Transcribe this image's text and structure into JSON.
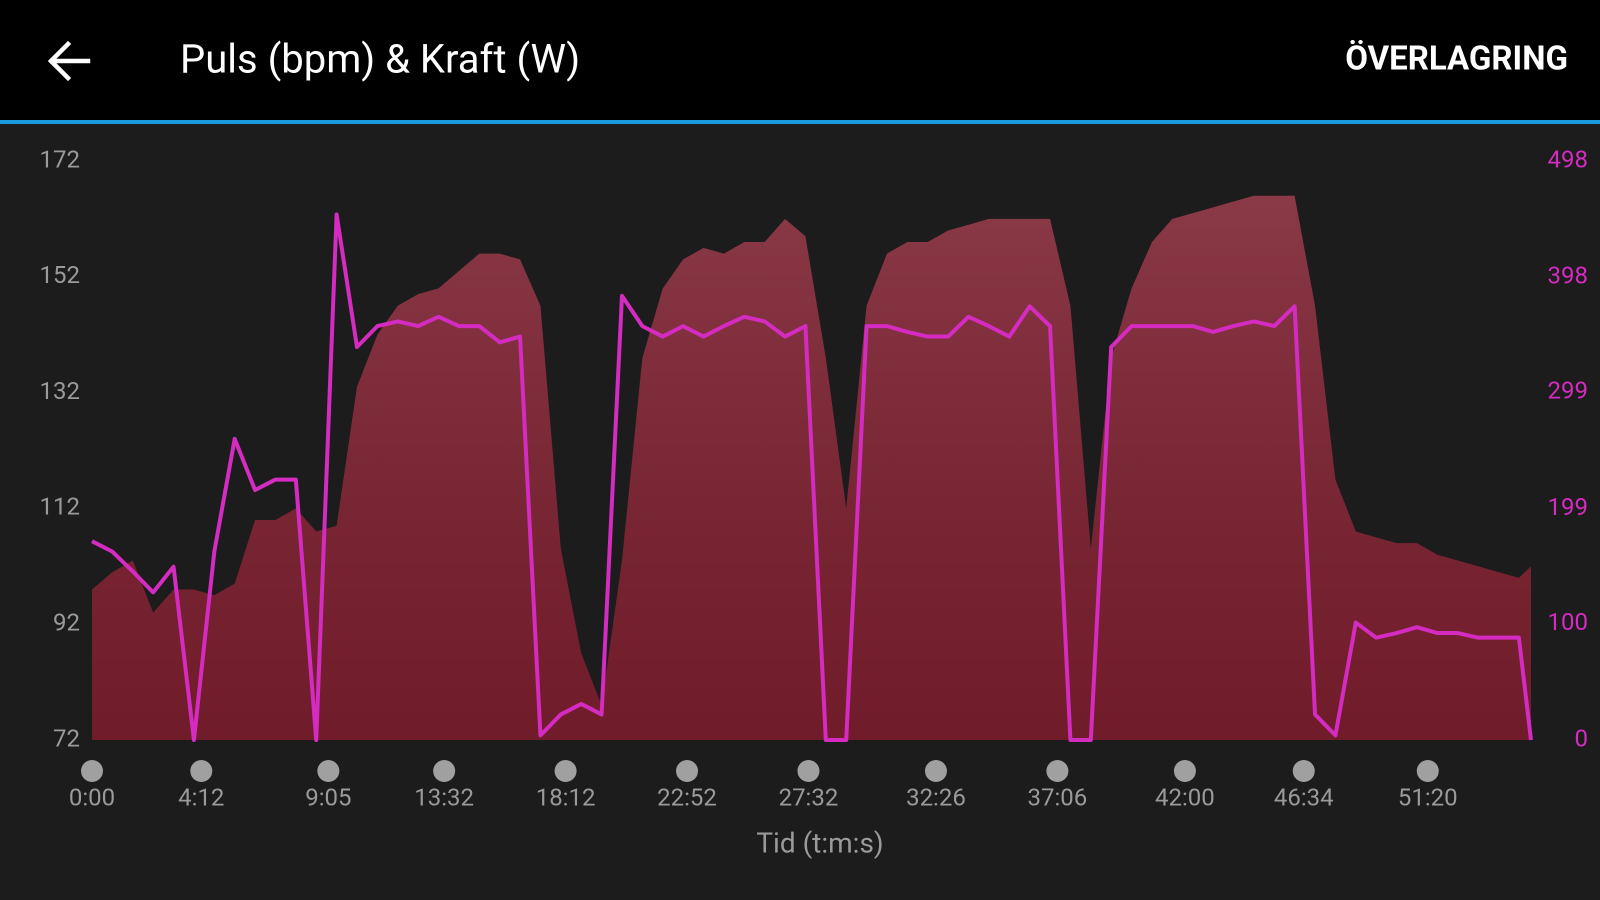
{
  "chart_data": {
    "type": "area-line",
    "title": "Puls (bpm) & Kraft (W)",
    "action": "ÖVERLAGRING",
    "xlabel": "Tid (t:m:s)",
    "x": [
      0,
      47,
      94,
      141,
      188,
      235,
      282,
      329,
      376,
      423,
      470,
      517,
      564,
      611,
      658,
      705,
      752,
      799,
      846,
      893,
      940,
      987,
      1034,
      1081,
      1128,
      1175,
      1222,
      1269,
      1316,
      1363,
      1410,
      1457,
      1504,
      1551,
      1598,
      1645,
      1692,
      1739,
      1786,
      1833,
      1880,
      1927,
      1974,
      2021,
      2068,
      2115,
      2162,
      2209,
      2256,
      2303,
      2350,
      2397,
      2444,
      2491,
      2538,
      2585,
      2632,
      2679,
      2726,
      2773,
      2820,
      2867,
      2914,
      2961,
      3008,
      3055,
      3102,
      3149,
      3196,
      3243,
      3290,
      3318
    ],
    "xlim": [
      0,
      3318
    ],
    "xticks": [
      {
        "value": 0,
        "label": "0:00"
      },
      {
        "value": 252,
        "label": "4:12"
      },
      {
        "value": 545,
        "label": "9:05"
      },
      {
        "value": 812,
        "label": "13:32"
      },
      {
        "value": 1092,
        "label": "18:12"
      },
      {
        "value": 1372,
        "label": "22:52"
      },
      {
        "value": 1652,
        "label": "27:32"
      },
      {
        "value": 1946,
        "label": "32:26"
      },
      {
        "value": 2226,
        "label": "37:06"
      },
      {
        "value": 2520,
        "label": "42:00"
      },
      {
        "value": 2794,
        "label": "46:34"
      },
      {
        "value": 3080,
        "label": "51:20"
      }
    ],
    "ylim": [
      72,
      172
    ],
    "yticks": [
      72,
      92,
      112,
      132,
      152,
      172
    ],
    "y2lim": [
      0,
      498
    ],
    "y2ticks": [
      0,
      100,
      199,
      299,
      398,
      498
    ],
    "series": [
      {
        "color": "#7a1e2e",
        "axis": "y",
        "values": [
          98,
          101,
          103,
          94,
          98,
          98,
          97,
          99,
          110,
          110,
          112,
          108,
          109,
          133,
          142,
          147,
          149,
          150,
          153,
          156,
          156,
          155,
          147,
          105,
          87,
          78,
          103,
          138,
          150,
          155,
          157,
          156,
          158,
          158,
          162,
          159,
          138,
          112,
          147,
          156,
          158,
          158,
          160,
          161,
          162,
          162,
          162,
          162,
          147,
          105,
          138,
          150,
          158,
          162,
          163,
          164,
          165,
          166,
          166,
          166,
          147,
          117,
          108,
          107,
          106,
          106,
          104,
          103,
          102,
          101,
          100,
          102
        ]
      },
      {
        "color": "#d42bc0",
        "axis": "y2",
        "values": [
          171,
          162,
          145,
          127,
          149,
          0,
          162,
          259,
          215,
          224,
          224,
          0,
          452,
          338,
          356,
          360,
          356,
          364,
          356,
          356,
          342,
          347,
          4,
          22,
          31,
          22,
          382,
          356,
          347,
          356,
          347,
          356,
          364,
          360,
          347,
          356,
          0,
          0,
          356,
          356,
          351,
          347,
          347,
          364,
          356,
          347,
          373,
          356,
          0,
          0,
          338,
          356,
          356,
          356,
          356,
          351,
          356,
          360,
          356,
          373,
          22,
          4,
          101,
          88,
          92,
          97,
          92,
          92,
          88,
          88,
          88,
          0
        ]
      }
    ]
  }
}
